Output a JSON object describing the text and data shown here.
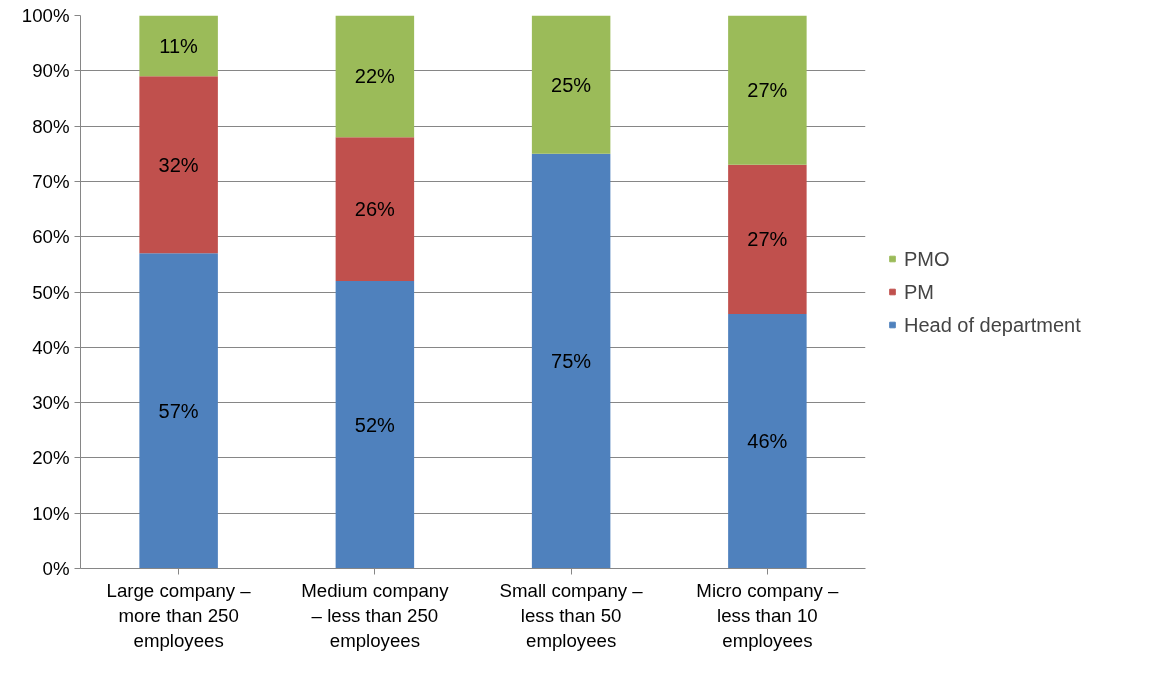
{
  "chart_data": {
    "type": "bar",
    "stacked": true,
    "categories": [
      "Large company –\nmore than 250\nemployees",
      "Medium company\n– less than 250\nemployees",
      "Small company –\nless than 50\nemployees",
      "Micro company –\nless than 10\nemployees"
    ],
    "series": [
      {
        "name": "Head of department",
        "color": "#4f81bd",
        "values": [
          57,
          52,
          75,
          46
        ],
        "value_labels": [
          "57%",
          "52%",
          "75%",
          "46%"
        ]
      },
      {
        "name": "PM",
        "color": "#c0504d",
        "values": [
          32,
          26,
          null,
          27
        ],
        "value_labels": [
          "32%",
          "26%",
          null,
          "27%"
        ]
      },
      {
        "name": "PMO",
        "color": "#9bbb59",
        "values": [
          11,
          22,
          25,
          27
        ],
        "value_labels": [
          "11%",
          "22%",
          "25%",
          "27%"
        ]
      }
    ],
    "ylim": [
      0,
      100
    ],
    "yticks": [
      {
        "value": 0,
        "label": "0%"
      },
      {
        "value": 10,
        "label": "10%"
      },
      {
        "value": 20,
        "label": "20%"
      },
      {
        "value": 30,
        "label": "30%"
      },
      {
        "value": 40,
        "label": "40%"
      },
      {
        "value": 50,
        "label": "50%"
      },
      {
        "value": 60,
        "label": "60%"
      },
      {
        "value": 70,
        "label": "70%"
      },
      {
        "value": 80,
        "label": "80%"
      },
      {
        "value": 90,
        "label": "90%"
      },
      {
        "value": 100,
        "label": "100%"
      }
    ],
    "grid": "y",
    "legend": "right"
  }
}
